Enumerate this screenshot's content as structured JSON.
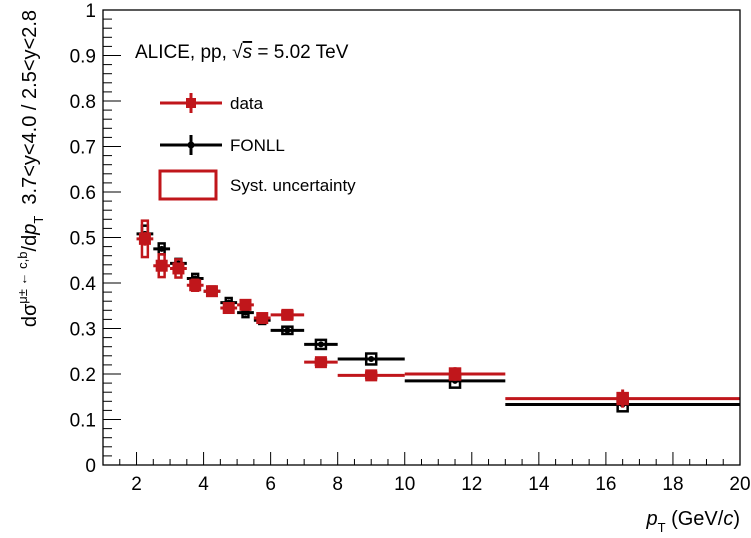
{
  "chart_data": {
    "type": "scatter",
    "annotation": {
      "prefix": "ALICE, pp, ",
      "sqrt_symbol": "√",
      "s_symbol": "s",
      "suffix": " = 5.02 TeV"
    },
    "xlabel": {
      "main": "p",
      "sub": "T",
      "rest": " (GeV/",
      "c": "c",
      "close": ")"
    },
    "ylabel": {
      "d": "dσ",
      "sup": "μ± ← c,b",
      "mid": "/d",
      "p": "p",
      "sub": "T",
      "rest": "  3.7<y<4.0 / 2.5<y<2.8"
    },
    "xlim": [
      1,
      20
    ],
    "ylim": [
      0,
      1
    ],
    "x_ticks": [
      2,
      4,
      6,
      8,
      10,
      12,
      14,
      16,
      18,
      20
    ],
    "y_ticks": [
      0,
      0.1,
      0.2,
      0.3,
      0.4,
      0.5,
      0.6,
      0.7,
      0.8,
      0.9,
      1
    ],
    "legend": {
      "position": "top-left",
      "entries": [
        {
          "label": "data",
          "color": "#c0161b",
          "style": "marker-errorbar"
        },
        {
          "label": "FONLL",
          "color": "#000000",
          "style": "line-errorbar"
        },
        {
          "label": "Syst. uncertainty",
          "color": "#c0161b",
          "style": "box"
        }
      ]
    },
    "series": [
      {
        "name": "data",
        "color": "#c0161b",
        "points": [
          {
            "x": 2.25,
            "xlo": 2.0,
            "xhi": 2.5,
            "y": 0.497,
            "stat": 0.015,
            "syst": 0.04
          },
          {
            "x": 2.75,
            "xlo": 2.5,
            "xhi": 3.0,
            "y": 0.438,
            "stat": 0.012,
            "syst": 0.025
          },
          {
            "x": 3.25,
            "xlo": 3.0,
            "xhi": 3.5,
            "y": 0.432,
            "stat": 0.01,
            "syst": 0.02
          },
          {
            "x": 3.75,
            "xlo": 3.5,
            "xhi": 4.0,
            "y": 0.395,
            "stat": 0.01,
            "syst": 0.012
          },
          {
            "x": 4.25,
            "xlo": 4.0,
            "xhi": 4.5,
            "y": 0.382,
            "stat": 0.01,
            "syst": 0.01
          },
          {
            "x": 4.75,
            "xlo": 4.5,
            "xhi": 5.0,
            "y": 0.345,
            "stat": 0.01,
            "syst": 0.01
          },
          {
            "x": 5.25,
            "xlo": 5.0,
            "xhi": 5.5,
            "y": 0.352,
            "stat": 0.01,
            "syst": 0.01
          },
          {
            "x": 5.75,
            "xlo": 5.5,
            "xhi": 6.0,
            "y": 0.323,
            "stat": 0.012,
            "syst": 0.008
          },
          {
            "x": 6.5,
            "xlo": 6.0,
            "xhi": 7.0,
            "y": 0.33,
            "stat": 0.012,
            "syst": 0.008
          },
          {
            "x": 7.5,
            "xlo": 7.0,
            "xhi": 8.0,
            "y": 0.226,
            "stat": 0.01,
            "syst": 0.006
          },
          {
            "x": 9.0,
            "xlo": 8.0,
            "xhi": 10.0,
            "y": 0.197,
            "stat": 0.01,
            "syst": 0.006
          },
          {
            "x": 11.5,
            "xlo": 10.0,
            "xhi": 13.0,
            "y": 0.2,
            "stat": 0.015,
            "syst": 0.012
          },
          {
            "x": 16.5,
            "xlo": 13.0,
            "xhi": 20.0,
            "y": 0.146,
            "stat": 0.02,
            "syst": 0.012
          }
        ]
      },
      {
        "name": "FONLL",
        "color": "#000000",
        "points": [
          {
            "x": 2.25,
            "xlo": 2.0,
            "xhi": 2.5,
            "y": 0.508,
            "unc": 0.018
          },
          {
            "x": 2.75,
            "xlo": 2.5,
            "xhi": 3.0,
            "y": 0.475,
            "unc": 0.012
          },
          {
            "x": 3.25,
            "xlo": 3.0,
            "xhi": 3.5,
            "y": 0.443,
            "unc": 0.01
          },
          {
            "x": 3.75,
            "xlo": 3.5,
            "xhi": 4.0,
            "y": 0.41,
            "unc": 0.01
          },
          {
            "x": 4.25,
            "xlo": 4.0,
            "xhi": 4.5,
            "y": 0.382,
            "unc": 0.01
          },
          {
            "x": 4.75,
            "xlo": 4.5,
            "xhi": 5.0,
            "y": 0.357,
            "unc": 0.01
          },
          {
            "x": 5.25,
            "xlo": 5.0,
            "xhi": 5.5,
            "y": 0.335,
            "unc": 0.01
          },
          {
            "x": 5.75,
            "xlo": 5.5,
            "xhi": 6.0,
            "y": 0.318,
            "unc": 0.008
          },
          {
            "x": 6.5,
            "xlo": 6.0,
            "xhi": 7.0,
            "y": 0.296,
            "unc": 0.008
          },
          {
            "x": 7.5,
            "xlo": 7.0,
            "xhi": 8.0,
            "y": 0.265,
            "unc": 0.01
          },
          {
            "x": 9.0,
            "xlo": 8.0,
            "xhi": 10.0,
            "y": 0.233,
            "unc": 0.012
          },
          {
            "x": 11.5,
            "xlo": 10.0,
            "xhi": 13.0,
            "y": 0.185,
            "unc": 0.015
          },
          {
            "x": 16.5,
            "xlo": 13.0,
            "xhi": 20.0,
            "y": 0.133,
            "unc": 0.015
          }
        ]
      }
    ]
  }
}
